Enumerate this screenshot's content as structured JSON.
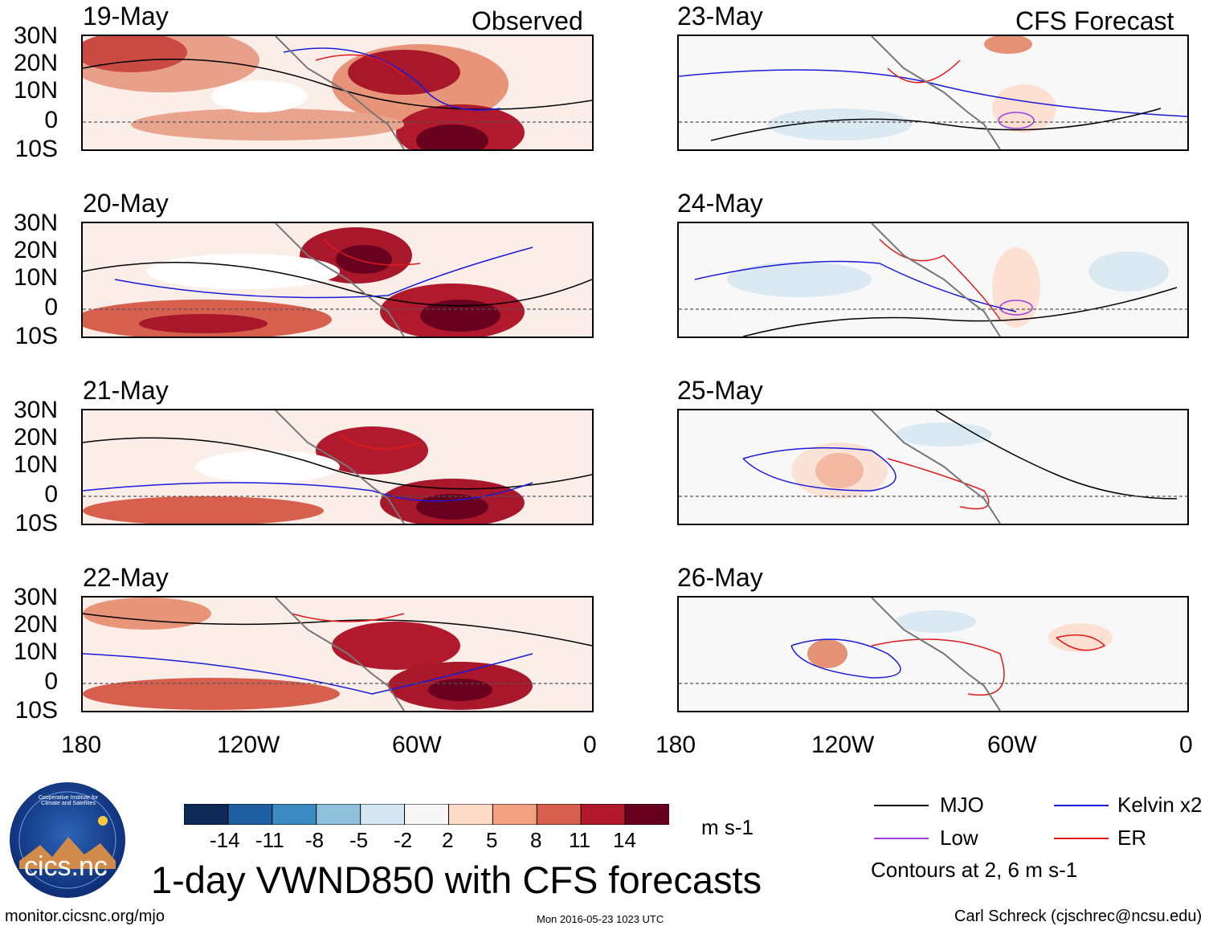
{
  "header": {
    "left_title": "Observed",
    "right_title": "CFS Forecast"
  },
  "panels_left": [
    {
      "date": "19-May"
    },
    {
      "date": "20-May"
    },
    {
      "date": "21-May"
    },
    {
      "date": "22-May"
    }
  ],
  "panels_right": [
    {
      "date": "23-May"
    },
    {
      "date": "24-May"
    },
    {
      "date": "25-May"
    },
    {
      "date": "26-May"
    }
  ],
  "lat_labels": [
    "30N",
    "20N",
    "10N",
    "0",
    "10S"
  ],
  "lon_labels": [
    "180",
    "120W",
    "60W",
    "0"
  ],
  "colorbar": {
    "colors": [
      "#0d2a57",
      "#1f5fa0",
      "#3b8bc2",
      "#8fc1dd",
      "#d3e6f1",
      "#f7f7f7",
      "#fddbc7",
      "#f2a281",
      "#d6604d",
      "#b2182b",
      "#67001f"
    ],
    "labels": [
      "-14",
      "-11",
      "-8",
      "-5",
      "-2",
      "2",
      "5",
      "8",
      "11",
      "14"
    ],
    "units": "m s-1"
  },
  "legend": {
    "items": [
      {
        "label": "MJO",
        "color": "#000000"
      },
      {
        "label": "Kelvin x2",
        "color": "#1a1adc"
      },
      {
        "label": "Low",
        "color": "#9a3fe0"
      },
      {
        "label": "ER",
        "color": "#e01a1a"
      }
    ],
    "note": "Contours at 2, 6 m s-1"
  },
  "title": "1-day VWND850 with CFS forecasts",
  "logo_text": "cics.nc",
  "logo_ring_text": "Cooperative Institute for Climate and Satellites",
  "footer": {
    "left": "monitor.cicsnc.org/mjo",
    "center": "Mon 2016-05-23 1023 UTC",
    "right": "Carl Schreck (cjschrec@ncsu.edu)"
  }
}
